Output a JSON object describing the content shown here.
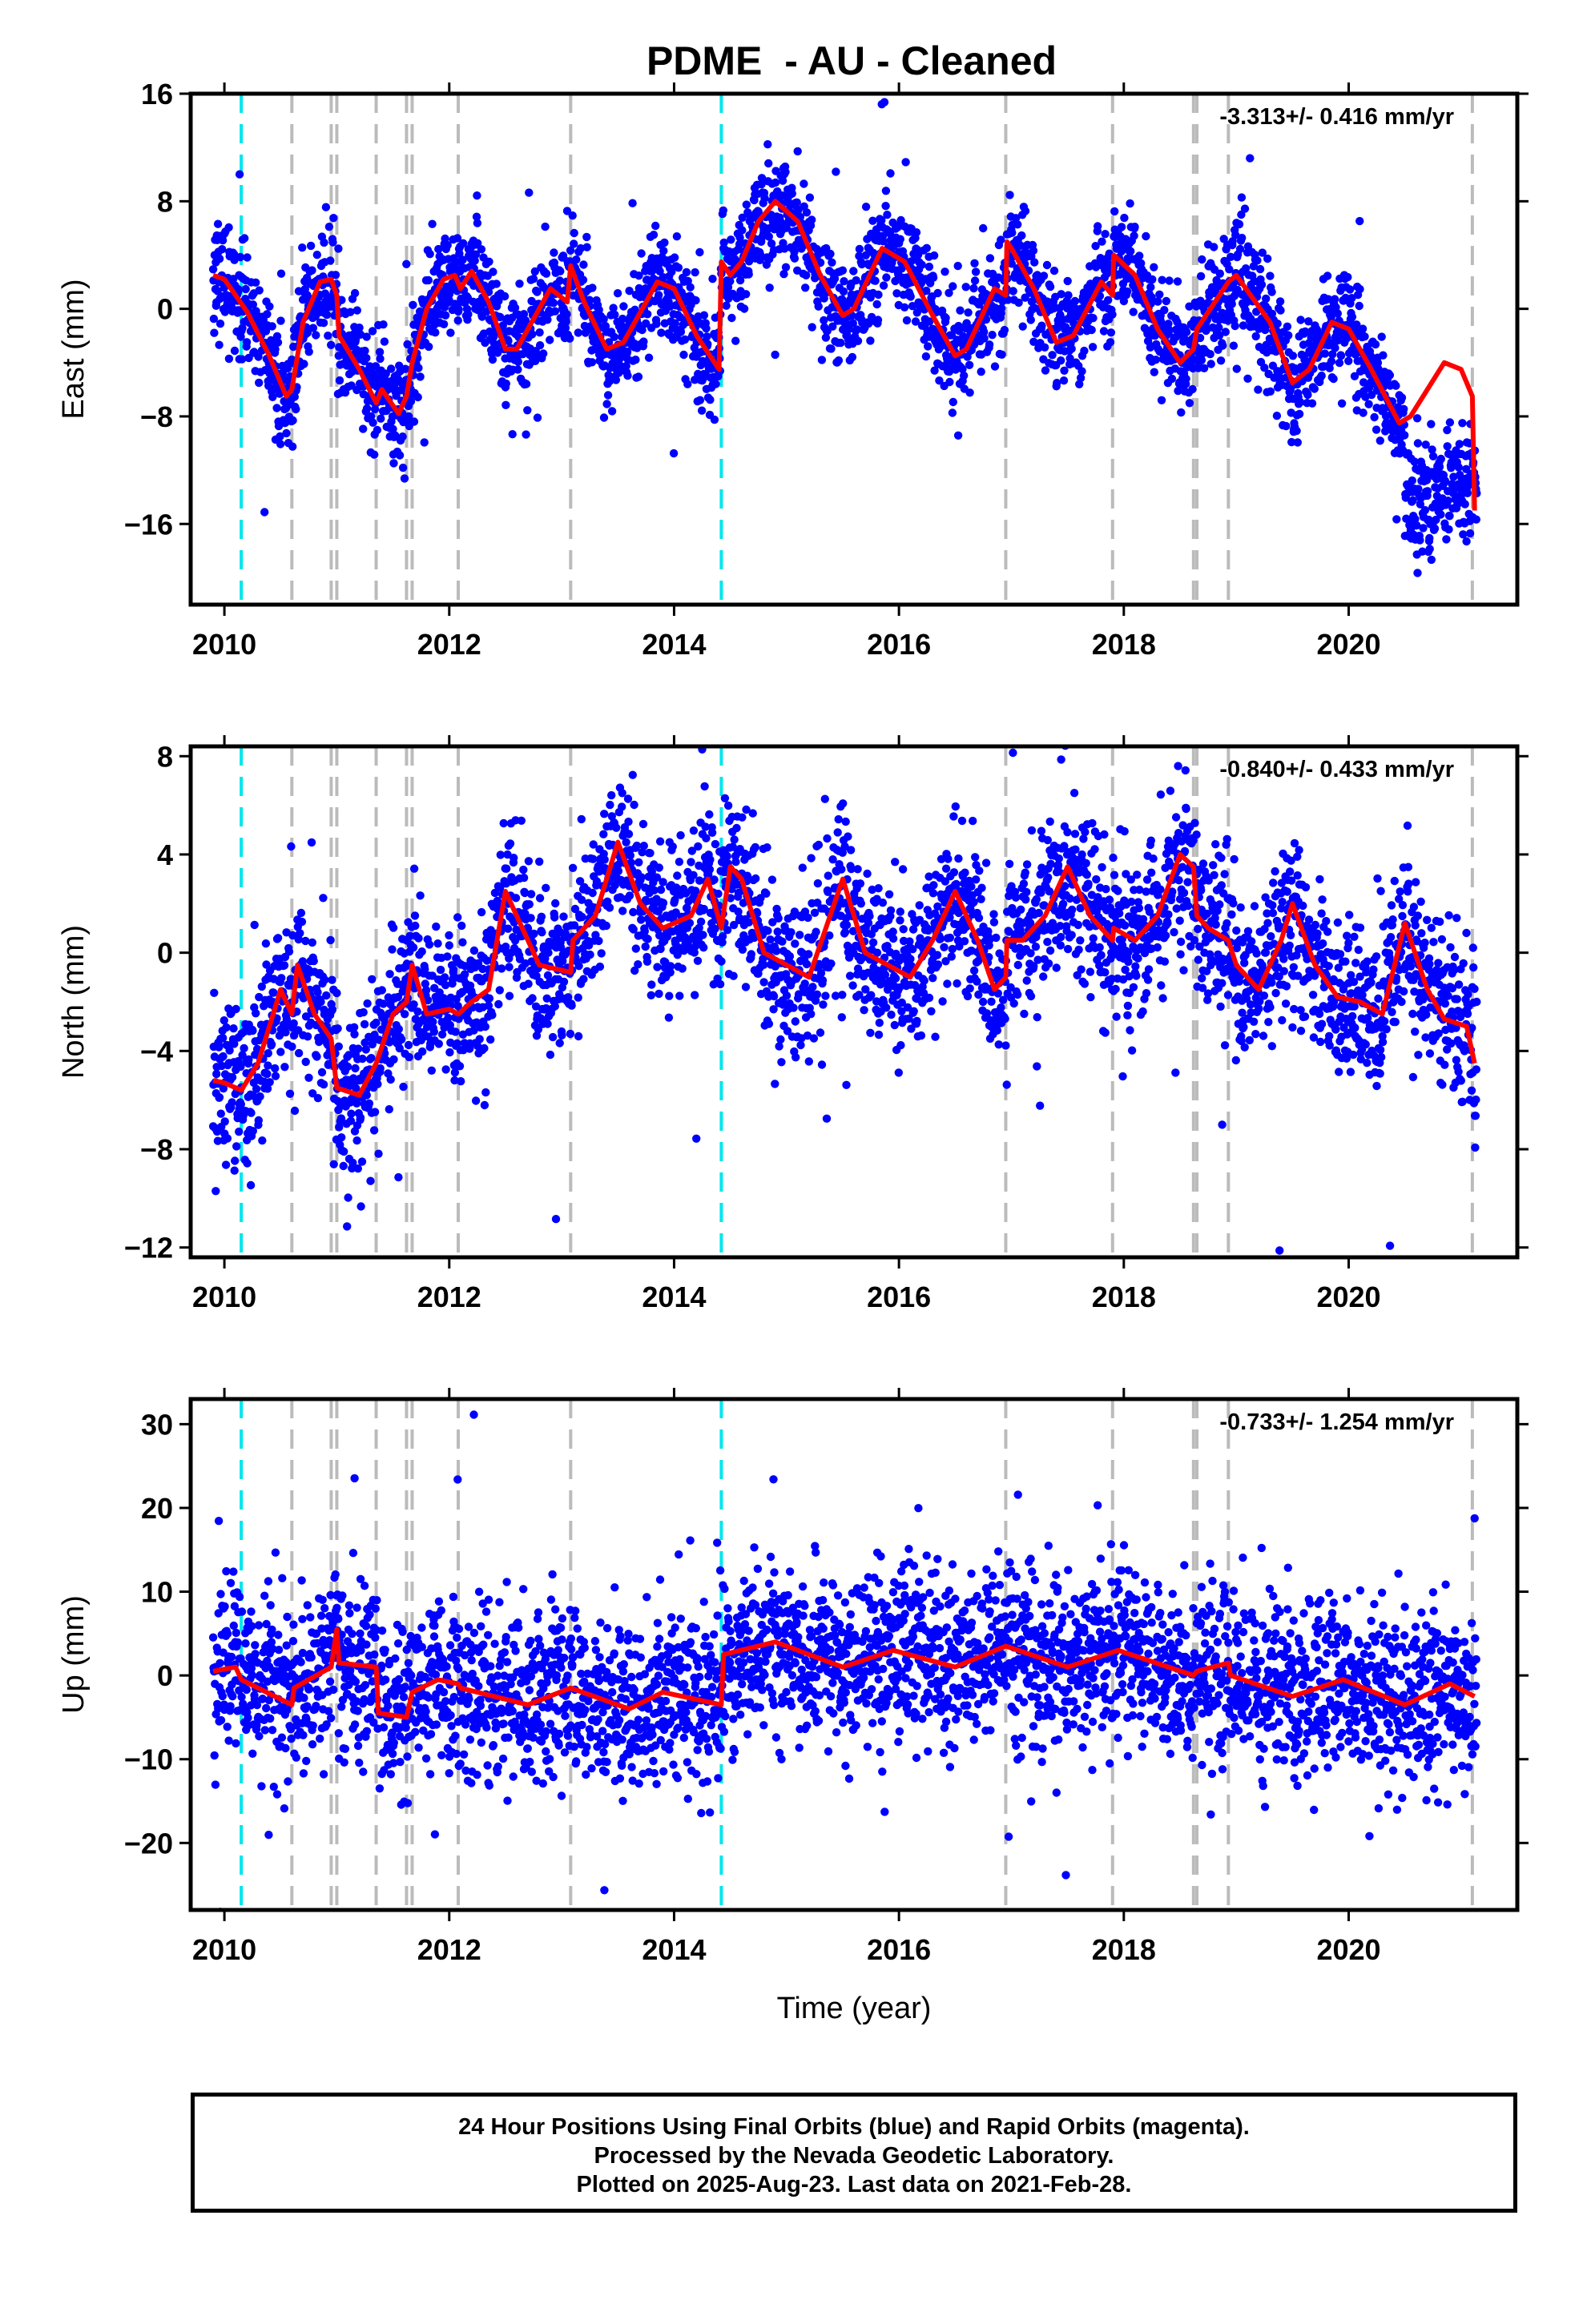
{
  "title": "PDME  - AU - Cleaned",
  "colors": {
    "points": "#0000ff",
    "model": "#ff0000",
    "offset_equipment": "#bbbbbb",
    "offset_earthquake": "#00e5ee"
  },
  "footer": {
    "line1": "24 Hour Positions Using Final Orbits (blue) and Rapid Orbits (magenta).",
    "line2": "Processed by the Nevada Geodetic Laboratory.",
    "line3": "Plotted on 2025-Aug-23. Last data on 2021-Feb-28."
  },
  "chart_data": [
    {
      "type": "scatter",
      "ylabel": "East (mm)",
      "xlabel": "",
      "rate": "-3.313+/- 0.416 mm/yr",
      "xlim": [
        2009.7,
        2021.5
      ],
      "ylim": [
        -22,
        16
      ],
      "xticks": [
        2010,
        2012,
        2014,
        2016,
        2018,
        2020
      ],
      "yticks": [
        -16,
        -8,
        0,
        8,
        16
      ],
      "ytick_labels": [
        "−16",
        "−8",
        "0",
        "8",
        "16"
      ],
      "grey_lines": [
        2010.6,
        2010.95,
        2011.0,
        2011.35,
        2011.62,
        2011.67,
        2012.08,
        2013.08,
        2016.95,
        2017.9,
        2018.62,
        2018.65,
        2018.93,
        2021.1
      ],
      "cyan_lines": [
        2010.15,
        2014.42
      ],
      "model": [
        [
          2009.9,
          2.5
        ],
        [
          2010.0,
          2.2
        ],
        [
          2010.2,
          -0.2
        ],
        [
          2010.4,
          -3.5
        ],
        [
          2010.55,
          -6.5
        ],
        [
          2010.6,
          -6.0
        ],
        [
          2010.7,
          -1.0
        ],
        [
          2010.85,
          2.0
        ],
        [
          2010.95,
          2.2
        ],
        [
          2011.0,
          1.0
        ],
        [
          2011.02,
          -2.0
        ],
        [
          2011.2,
          -4.5
        ],
        [
          2011.35,
          -7.0
        ],
        [
          2011.4,
          -6.0
        ],
        [
          2011.55,
          -7.8
        ],
        [
          2011.62,
          -6.5
        ],
        [
          2011.67,
          -4.0
        ],
        [
          2011.8,
          0.0
        ],
        [
          2011.95,
          2.2
        ],
        [
          2012.05,
          2.5
        ],
        [
          2012.1,
          1.5
        ],
        [
          2012.2,
          2.8
        ],
        [
          2012.35,
          0.5
        ],
        [
          2012.5,
          -3.0
        ],
        [
          2012.6,
          -3.0
        ],
        [
          2012.9,
          1.5
        ],
        [
          2013.05,
          0.5
        ],
        [
          2013.08,
          3.2
        ],
        [
          2013.2,
          0.5
        ],
        [
          2013.4,
          -3.0
        ],
        [
          2013.55,
          -2.5
        ],
        [
          2013.85,
          2.0
        ],
        [
          2014.0,
          1.5
        ],
        [
          2014.2,
          -2.0
        ],
        [
          2014.4,
          -4.5
        ],
        [
          2014.42,
          3.5
        ],
        [
          2014.5,
          2.5
        ],
        [
          2014.6,
          3.5
        ],
        [
          2014.75,
          6.5
        ],
        [
          2014.9,
          8.0
        ],
        [
          2015.1,
          6.5
        ],
        [
          2015.3,
          2.5
        ],
        [
          2015.5,
          -0.5
        ],
        [
          2015.6,
          0.0
        ],
        [
          2015.85,
          4.5
        ],
        [
          2016.05,
          3.5
        ],
        [
          2016.3,
          -0.5
        ],
        [
          2016.5,
          -3.5
        ],
        [
          2016.6,
          -3.0
        ],
        [
          2016.85,
          1.5
        ],
        [
          2016.95,
          1.0
        ],
        [
          2016.96,
          5.0
        ],
        [
          2017.0,
          4.5
        ],
        [
          2017.2,
          1.5
        ],
        [
          2017.4,
          -2.5
        ],
        [
          2017.55,
          -2.0
        ],
        [
          2017.8,
          2.0
        ],
        [
          2017.9,
          1.0
        ],
        [
          2017.91,
          4.0
        ],
        [
          2018.1,
          2.5
        ],
        [
          2018.3,
          -1.5
        ],
        [
          2018.5,
          -4.0
        ],
        [
          2018.62,
          -3.0
        ],
        [
          2018.65,
          -1.5
        ],
        [
          2018.93,
          2.0
        ],
        [
          2019.0,
          2.5
        ],
        [
          2019.3,
          -1.0
        ],
        [
          2019.5,
          -5.5
        ],
        [
          2019.65,
          -4.5
        ],
        [
          2019.85,
          -1.0
        ],
        [
          2020.0,
          -1.5
        ],
        [
          2020.2,
          -4.5
        ],
        [
          2020.45,
          -8.5
        ],
        [
          2020.55,
          -8.0
        ],
        [
          2020.85,
          -4.0
        ],
        [
          2021.0,
          -4.5
        ],
        [
          2021.1,
          -6.5
        ],
        [
          2021.12,
          -15.0
        ]
      ]
    },
    {
      "type": "scatter",
      "ylabel": "North (mm)",
      "xlabel": "",
      "rate": "-0.840+/- 0.433 mm/yr",
      "xlim": [
        2009.7,
        2021.5
      ],
      "ylim": [
        -12.4,
        8.4
      ],
      "xticks": [
        2010,
        2012,
        2014,
        2016,
        2018,
        2020
      ],
      "yticks": [
        -12,
        -8,
        -4,
        0,
        4,
        8
      ],
      "ytick_labels": [
        "−12",
        "−8",
        "−4",
        "0",
        "4",
        "8"
      ],
      "grey_lines": [
        2010.6,
        2010.95,
        2011.0,
        2011.35,
        2011.62,
        2011.67,
        2012.08,
        2013.08,
        2016.95,
        2017.9,
        2018.62,
        2018.65,
        2018.93,
        2021.1
      ],
      "cyan_lines": [
        2010.15,
        2014.42
      ],
      "model": [
        [
          2009.9,
          -5.2
        ],
        [
          2010.0,
          -5.3
        ],
        [
          2010.15,
          -5.6
        ],
        [
          2010.3,
          -4.5
        ],
        [
          2010.5,
          -1.5
        ],
        [
          2010.6,
          -2.5
        ],
        [
          2010.65,
          -0.5
        ],
        [
          2010.8,
          -2.5
        ],
        [
          2010.95,
          -3.5
        ],
        [
          2011.0,
          -5.5
        ],
        [
          2011.2,
          -5.8
        ],
        [
          2011.35,
          -4.5
        ],
        [
          2011.5,
          -2.5
        ],
        [
          2011.62,
          -2.0
        ],
        [
          2011.67,
          -0.5
        ],
        [
          2011.8,
          -2.5
        ],
        [
          2012.0,
          -2.3
        ],
        [
          2012.08,
          -2.5
        ],
        [
          2012.2,
          -2.0
        ],
        [
          2012.35,
          -1.5
        ],
        [
          2012.5,
          2.5
        ],
        [
          2012.65,
          1.0
        ],
        [
          2012.8,
          -0.5
        ],
        [
          2013.08,
          -0.8
        ],
        [
          2013.1,
          0.5
        ],
        [
          2013.3,
          1.5
        ],
        [
          2013.5,
          4.5
        ],
        [
          2013.7,
          2.0
        ],
        [
          2013.9,
          1.0
        ],
        [
          2014.15,
          1.5
        ],
        [
          2014.3,
          3.0
        ],
        [
          2014.42,
          1.0
        ],
        [
          2014.5,
          3.5
        ],
        [
          2014.6,
          3.0
        ],
        [
          2014.8,
          0.0
        ],
        [
          2015.0,
          -0.5
        ],
        [
          2015.2,
          -1.0
        ],
        [
          2015.35,
          1.0
        ],
        [
          2015.5,
          3.0
        ],
        [
          2015.7,
          0.0
        ],
        [
          2015.9,
          -0.5
        ],
        [
          2016.1,
          -1.0
        ],
        [
          2016.3,
          0.5
        ],
        [
          2016.5,
          2.5
        ],
        [
          2016.7,
          0.5
        ],
        [
          2016.85,
          -1.5
        ],
        [
          2016.95,
          -1.0
        ],
        [
          2016.96,
          0.5
        ],
        [
          2017.1,
          0.5
        ],
        [
          2017.3,
          1.5
        ],
        [
          2017.5,
          3.5
        ],
        [
          2017.7,
          1.5
        ],
        [
          2017.9,
          0.5
        ],
        [
          2017.91,
          1.0
        ],
        [
          2018.1,
          0.5
        ],
        [
          2018.3,
          1.5
        ],
        [
          2018.5,
          4.0
        ],
        [
          2018.62,
          3.5
        ],
        [
          2018.65,
          1.5
        ],
        [
          2018.75,
          1.0
        ],
        [
          2018.93,
          0.5
        ],
        [
          2019.0,
          -0.5
        ],
        [
          2019.2,
          -1.5
        ],
        [
          2019.4,
          0.5
        ],
        [
          2019.5,
          2.0
        ],
        [
          2019.7,
          -0.5
        ],
        [
          2019.9,
          -1.8
        ],
        [
          2020.1,
          -2.0
        ],
        [
          2020.3,
          -2.5
        ],
        [
          2020.5,
          1.2
        ],
        [
          2020.7,
          -1.5
        ],
        [
          2020.85,
          -2.7
        ],
        [
          2021.05,
          -3.0
        ],
        [
          2021.12,
          -4.5
        ]
      ]
    },
    {
      "type": "scatter",
      "ylabel": "Up (mm)",
      "xlabel": "Time (year)",
      "rate": "-0.733+/- 1.254 mm/yr",
      "xlim": [
        2009.7,
        2021.5
      ],
      "ylim": [
        -28,
        33
      ],
      "xticks": [
        2010,
        2012,
        2014,
        2016,
        2018,
        2020
      ],
      "yticks": [
        -20,
        -10,
        0,
        10,
        20,
        30
      ],
      "ytick_labels": [
        "−20",
        "−10",
        "0",
        "10",
        "20",
        "30"
      ],
      "grey_lines": [
        2010.6,
        2010.95,
        2011.0,
        2011.35,
        2011.62,
        2011.67,
        2012.08,
        2013.08,
        2016.95,
        2017.9,
        2018.62,
        2018.65,
        2018.93,
        2021.1
      ],
      "cyan_lines": [
        2010.15,
        2014.42
      ],
      "model": [
        [
          2009.9,
          0.5
        ],
        [
          2010.1,
          1.0
        ],
        [
          2010.15,
          -0.5
        ],
        [
          2010.6,
          -3.5
        ],
        [
          2010.62,
          -1.5
        ],
        [
          2010.95,
          1.0
        ],
        [
          2011.0,
          5.5
        ],
        [
          2011.02,
          1.5
        ],
        [
          2011.35,
          1.0
        ],
        [
          2011.37,
          -4.5
        ],
        [
          2011.62,
          -5.0
        ],
        [
          2011.67,
          -2.0
        ],
        [
          2011.9,
          -0.5
        ],
        [
          2012.08,
          -1.0
        ],
        [
          2012.1,
          -1.5
        ],
        [
          2012.7,
          -3.5
        ],
        [
          2013.08,
          -1.5
        ],
        [
          2013.6,
          -4.0
        ],
        [
          2013.9,
          -2.0
        ],
        [
          2014.42,
          -3.5
        ],
        [
          2014.44,
          2.5
        ],
        [
          2014.9,
          4.0
        ],
        [
          2015.5,
          1.0
        ],
        [
          2015.95,
          3.0
        ],
        [
          2016.5,
          1.0
        ],
        [
          2016.95,
          3.5
        ],
        [
          2017.5,
          1.0
        ],
        [
          2017.95,
          3.0
        ],
        [
          2018.62,
          0.0
        ],
        [
          2018.65,
          0.5
        ],
        [
          2018.93,
          1.5
        ],
        [
          2018.95,
          0.0
        ],
        [
          2019.5,
          -2.5
        ],
        [
          2019.95,
          -0.5
        ],
        [
          2020.5,
          -3.5
        ],
        [
          2020.9,
          -1.0
        ],
        [
          2021.12,
          -2.5
        ]
      ]
    }
  ]
}
